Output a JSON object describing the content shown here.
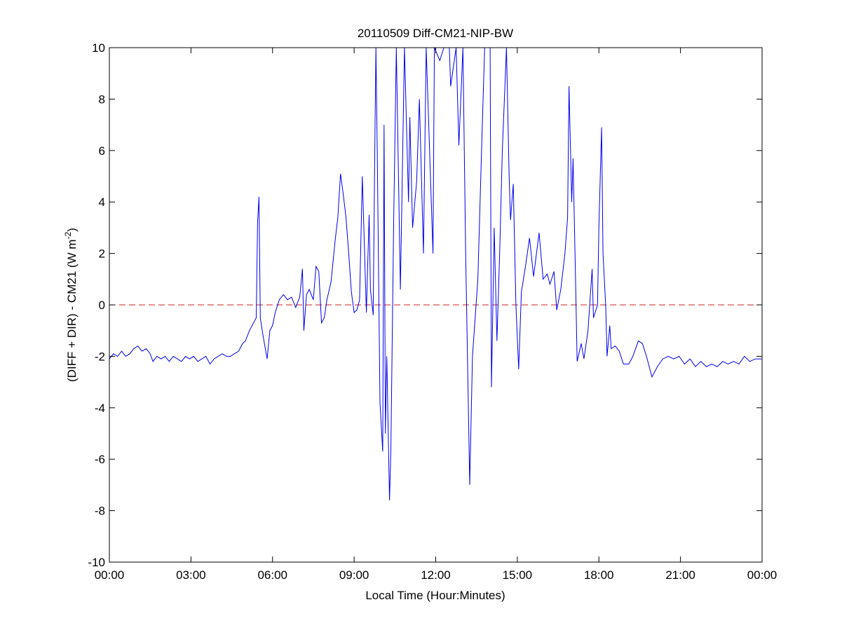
{
  "chart_data": {
    "type": "line",
    "title": "20110509 Diff-CM21-NIP-BW",
    "xlabel": "Local Time (Hour:Minutes)",
    "ylabel": "(DIFF + DIR) - CM21 (W m",
    "ylabel_sup": "-2",
    "ylabel_end": ")",
    "xlim": [
      0,
      24
    ],
    "ylim": [
      -10,
      10
    ],
    "x_unit": "hours",
    "xticks": [
      0,
      3,
      6,
      9,
      12,
      15,
      18,
      21,
      24
    ],
    "xtick_labels": [
      "00:00",
      "03:00",
      "06:00",
      "09:00",
      "12:00",
      "15:00",
      "18:00",
      "21:00",
      "00:00"
    ],
    "yticks": [
      -10,
      -8,
      -6,
      -4,
      -2,
      0,
      2,
      4,
      6,
      8,
      10
    ],
    "ytick_labels": [
      "-10",
      "-8",
      "-6",
      "-4",
      "-2",
      "0",
      "2",
      "4",
      "6",
      "8",
      "10"
    ],
    "grid": false,
    "reference_line": {
      "y": 0,
      "style": "dashed",
      "color": "#cc2222"
    },
    "series_color": "#0000ee",
    "points": [
      [
        0.0,
        -2.1
      ],
      [
        0.15,
        -1.9
      ],
      [
        0.3,
        -2.0
      ],
      [
        0.45,
        -1.8
      ],
      [
        0.6,
        -2.0
      ],
      [
        0.75,
        -1.9
      ],
      [
        0.9,
        -1.7
      ],
      [
        1.05,
        -1.6
      ],
      [
        1.2,
        -1.8
      ],
      [
        1.35,
        -1.7
      ],
      [
        1.5,
        -1.9
      ],
      [
        1.6,
        -2.2
      ],
      [
        1.75,
        -2.0
      ],
      [
        1.9,
        -2.1
      ],
      [
        2.05,
        -2.0
      ],
      [
        2.2,
        -2.2
      ],
      [
        2.35,
        -2.0
      ],
      [
        2.5,
        -2.1
      ],
      [
        2.65,
        -2.2
      ],
      [
        2.8,
        -2.0
      ],
      [
        2.95,
        -2.1
      ],
      [
        3.1,
        -2.0
      ],
      [
        3.25,
        -2.2
      ],
      [
        3.4,
        -2.1
      ],
      [
        3.55,
        -2.0
      ],
      [
        3.7,
        -2.3
      ],
      [
        3.85,
        -2.1
      ],
      [
        4.0,
        -2.0
      ],
      [
        4.15,
        -1.9
      ],
      [
        4.3,
        -2.0
      ],
      [
        4.45,
        -2.0
      ],
      [
        4.6,
        -1.9
      ],
      [
        4.75,
        -1.8
      ],
      [
        4.9,
        -1.5
      ],
      [
        5.0,
        -1.4
      ],
      [
        5.15,
        -1.0
      ],
      [
        5.3,
        -0.7
      ],
      [
        5.4,
        -0.5
      ],
      [
        5.45,
        3.2
      ],
      [
        5.5,
        4.2
      ],
      [
        5.55,
        -0.5
      ],
      [
        5.65,
        -1.2
      ],
      [
        5.8,
        -2.1
      ],
      [
        5.9,
        -1.0
      ],
      [
        6.0,
        -0.8
      ],
      [
        6.1,
        -0.3
      ],
      [
        6.25,
        0.2
      ],
      [
        6.4,
        0.4
      ],
      [
        6.55,
        0.2
      ],
      [
        6.7,
        0.3
      ],
      [
        6.85,
        -0.1
      ],
      [
        7.0,
        0.3
      ],
      [
        7.1,
        1.4
      ],
      [
        7.15,
        -1.0
      ],
      [
        7.25,
        0.4
      ],
      [
        7.35,
        0.6
      ],
      [
        7.5,
        0.2
      ],
      [
        7.6,
        1.5
      ],
      [
        7.7,
        1.3
      ],
      [
        7.8,
        -0.7
      ],
      [
        7.9,
        -0.5
      ],
      [
        8.0,
        0.2
      ],
      [
        8.15,
        0.9
      ],
      [
        8.3,
        2.5
      ],
      [
        8.4,
        3.4
      ],
      [
        8.5,
        5.1
      ],
      [
        8.6,
        4.3
      ],
      [
        8.7,
        3.4
      ],
      [
        8.8,
        2.0
      ],
      [
        8.9,
        0.5
      ],
      [
        9.0,
        -0.3
      ],
      [
        9.1,
        -0.2
      ],
      [
        9.2,
        0.2
      ],
      [
        9.3,
        5.0
      ],
      [
        9.4,
        1.5
      ],
      [
        9.45,
        -0.3
      ],
      [
        9.55,
        3.5
      ],
      [
        9.6,
        0.6
      ],
      [
        9.7,
        -0.4
      ],
      [
        9.75,
        5.0
      ],
      [
        9.8,
        10
      ],
      [
        9.85,
        6
      ],
      [
        9.95,
        -3.8
      ],
      [
        10.05,
        -5.7
      ],
      [
        10.1,
        7.0
      ],
      [
        10.15,
        -5.0
      ],
      [
        10.2,
        -2.0
      ],
      [
        10.3,
        -7.6
      ],
      [
        10.35,
        -5.7
      ],
      [
        10.45,
        3.0
      ],
      [
        10.55,
        10
      ],
      [
        10.7,
        0.6
      ],
      [
        10.85,
        10
      ],
      [
        11.0,
        4.0
      ],
      [
        11.05,
        7.3
      ],
      [
        11.15,
        3.0
      ],
      [
        11.3,
        4.8
      ],
      [
        11.4,
        8.0
      ],
      [
        11.55,
        2.0
      ],
      [
        11.65,
        10
      ],
      [
        11.9,
        2.0
      ],
      [
        11.95,
        10
      ],
      [
        12.15,
        9.5
      ],
      [
        12.3,
        10
      ],
      [
        12.5,
        10
      ],
      [
        12.55,
        8.5
      ],
      [
        12.75,
        10
      ],
      [
        12.85,
        6.2
      ],
      [
        13.0,
        10
      ],
      [
        13.1,
        2.0
      ],
      [
        13.25,
        -7.0
      ],
      [
        13.35,
        -2.0
      ],
      [
        13.55,
        1.0
      ],
      [
        13.7,
        6.5
      ],
      [
        13.8,
        10
      ],
      [
        14.0,
        10
      ],
      [
        14.05,
        -3.2
      ],
      [
        14.15,
        3.0
      ],
      [
        14.25,
        -1.4
      ],
      [
        14.35,
        2.0
      ],
      [
        14.45,
        6.0
      ],
      [
        14.6,
        10
      ],
      [
        14.7,
        5.0
      ],
      [
        14.75,
        3.3
      ],
      [
        14.85,
        4.7
      ],
      [
        14.95,
        0.0
      ],
      [
        15.05,
        -2.5
      ],
      [
        15.15,
        0.5
      ],
      [
        15.3,
        1.5
      ],
      [
        15.45,
        2.6
      ],
      [
        15.6,
        1.1
      ],
      [
        15.8,
        2.8
      ],
      [
        15.95,
        1.0
      ],
      [
        16.1,
        1.2
      ],
      [
        16.2,
        0.8
      ],
      [
        16.35,
        1.3
      ],
      [
        16.45,
        -0.2
      ],
      [
        16.6,
        0.6
      ],
      [
        16.75,
        2.0
      ],
      [
        16.85,
        3.4
      ],
      [
        16.9,
        8.5
      ],
      [
        17.0,
        4.0
      ],
      [
        17.05,
        5.7
      ],
      [
        17.15,
        0.5
      ],
      [
        17.2,
        -2.2
      ],
      [
        17.35,
        -1.5
      ],
      [
        17.45,
        -2.1
      ],
      [
        17.6,
        -1.0
      ],
      [
        17.75,
        1.4
      ],
      [
        17.8,
        -0.5
      ],
      [
        17.95,
        0.0
      ],
      [
        18.0,
        3.1
      ],
      [
        18.1,
        6.9
      ],
      [
        18.15,
        2.0
      ],
      [
        18.25,
        0.0
      ],
      [
        18.3,
        -2.0
      ],
      [
        18.4,
        -0.8
      ],
      [
        18.45,
        -1.7
      ],
      [
        18.6,
        -1.6
      ],
      [
        18.75,
        -1.8
      ],
      [
        18.9,
        -2.3
      ],
      [
        19.1,
        -2.3
      ],
      [
        19.25,
        -2.0
      ],
      [
        19.45,
        -1.4
      ],
      [
        19.6,
        -1.5
      ],
      [
        19.75,
        -2.0
      ],
      [
        19.95,
        -2.8
      ],
      [
        20.15,
        -2.4
      ],
      [
        20.35,
        -2.1
      ],
      [
        20.55,
        -2.0
      ],
      [
        20.75,
        -2.1
      ],
      [
        20.95,
        -2.0
      ],
      [
        21.15,
        -2.3
      ],
      [
        21.35,
        -2.1
      ],
      [
        21.55,
        -2.4
      ],
      [
        21.75,
        -2.2
      ],
      [
        21.95,
        -2.4
      ],
      [
        22.15,
        -2.3
      ],
      [
        22.35,
        -2.4
      ],
      [
        22.55,
        -2.2
      ],
      [
        22.75,
        -2.3
      ],
      [
        22.95,
        -2.2
      ],
      [
        23.15,
        -2.3
      ],
      [
        23.35,
        -2.0
      ],
      [
        23.55,
        -2.2
      ],
      [
        23.75,
        -2.1
      ],
      [
        24.0,
        -2.1
      ]
    ]
  }
}
